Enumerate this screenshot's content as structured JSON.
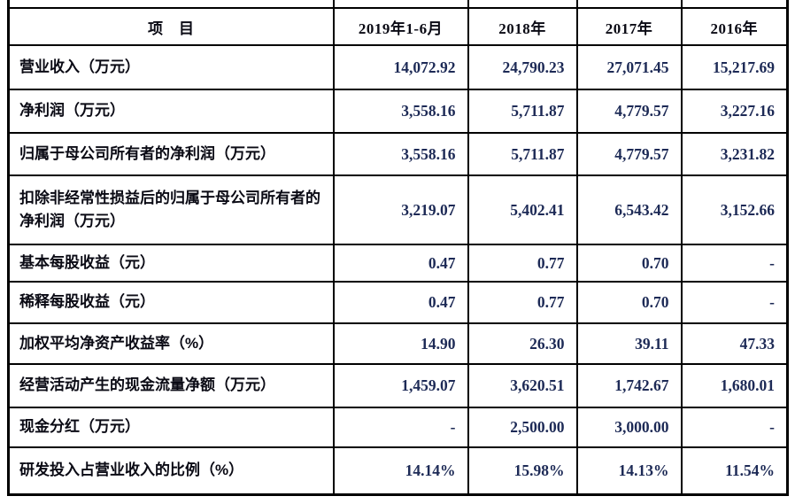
{
  "table": {
    "name": "financial-summary-table",
    "columns": [
      "项　目",
      "2019年1-6月",
      "2018年",
      "2017年",
      "2016年"
    ],
    "rows": [
      {
        "label": "营业收入（万元）",
        "values": [
          "14,072.92",
          "24,790.23",
          "27,071.45",
          "15,217.69"
        ]
      },
      {
        "label": "净利润（万元）",
        "values": [
          "3,558.16",
          "5,711.87",
          "4,779.57",
          "3,227.16"
        ]
      },
      {
        "label": "归属于母公司所有者的净利润（万元）",
        "values": [
          "3,558.16",
          "5,711.87",
          "4,779.57",
          "3,231.82"
        ]
      },
      {
        "label": "扣除非经常性损益后的归属于母公司所有者的净利润（万元）",
        "values": [
          "3,219.07",
          "5,402.41",
          "6,543.42",
          "3,152.66"
        ]
      },
      {
        "label": "基本每股收益（元）",
        "values": [
          "0.47",
          "0.77",
          "0.70",
          "-"
        ]
      },
      {
        "label": "稀释每股收益（元）",
        "values": [
          "0.47",
          "0.77",
          "0.70",
          "-"
        ]
      },
      {
        "label": "加权平均净资产收益率（%）",
        "values": [
          "14.90",
          "26.30",
          "39.11",
          "47.33"
        ]
      },
      {
        "label": "经营活动产生的现金流量净额（万元）",
        "values": [
          "1,459.07",
          "3,620.51",
          "1,742.67",
          "1,680.01"
        ]
      },
      {
        "label": "现金分红（万元）",
        "values": [
          "-",
          "2,500.00",
          "3,000.00",
          "-"
        ]
      },
      {
        "label": "研发投入占营业收入的比例（%）",
        "values": [
          "14.14%",
          "15.98%",
          "14.13%",
          "11.54%"
        ]
      }
    ]
  }
}
